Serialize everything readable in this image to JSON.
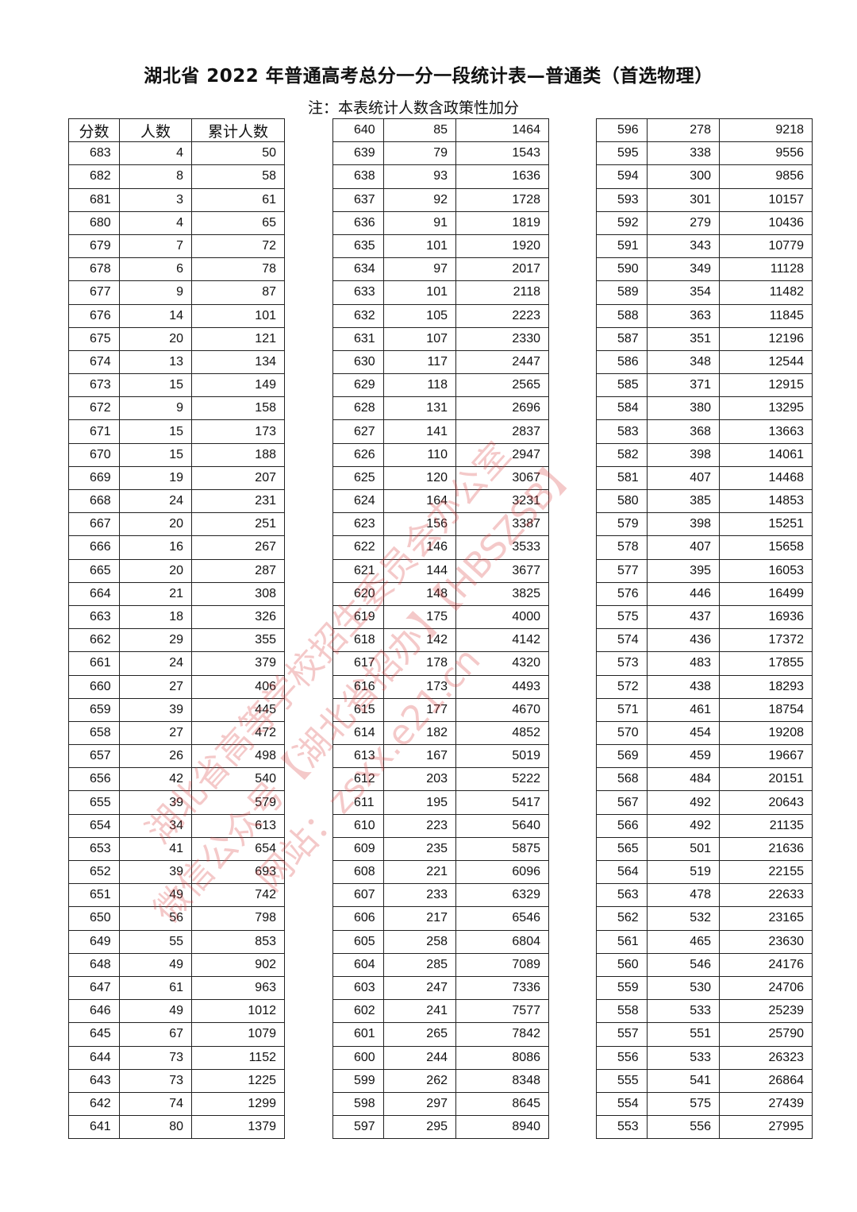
{
  "title": "湖北省 2022 年普通高考总分一分一段统计表—普通类（首选物理）",
  "note": "注：本表统计人数含政策性加分",
  "headers": [
    "分数",
    "人数",
    "累计人数"
  ],
  "watermark": [
    "湖北省高等学校招生委员会办公室",
    "微信公众号【湖北省招办】【HBSZSB】",
    "网站：zsxx.e21.cn"
  ],
  "tables": [
    [
      [
        683,
        4,
        50
      ],
      [
        682,
        8,
        58
      ],
      [
        681,
        3,
        61
      ],
      [
        680,
        4,
        65
      ],
      [
        679,
        7,
        72
      ],
      [
        678,
        6,
        78
      ],
      [
        677,
        9,
        87
      ],
      [
        676,
        14,
        101
      ],
      [
        675,
        20,
        121
      ],
      [
        674,
        13,
        134
      ],
      [
        673,
        15,
        149
      ],
      [
        672,
        9,
        158
      ],
      [
        671,
        15,
        173
      ],
      [
        670,
        15,
        188
      ],
      [
        669,
        19,
        207
      ],
      [
        668,
        24,
        231
      ],
      [
        667,
        20,
        251
      ],
      [
        666,
        16,
        267
      ],
      [
        665,
        20,
        287
      ],
      [
        664,
        21,
        308
      ],
      [
        663,
        18,
        326
      ],
      [
        662,
        29,
        355
      ],
      [
        661,
        24,
        379
      ],
      [
        660,
        27,
        406
      ],
      [
        659,
        39,
        445
      ],
      [
        658,
        27,
        472
      ],
      [
        657,
        26,
        498
      ],
      [
        656,
        42,
        540
      ],
      [
        655,
        39,
        579
      ],
      [
        654,
        34,
        613
      ],
      [
        653,
        41,
        654
      ],
      [
        652,
        39,
        693
      ],
      [
        651,
        49,
        742
      ],
      [
        650,
        56,
        798
      ],
      [
        649,
        55,
        853
      ],
      [
        648,
        49,
        902
      ],
      [
        647,
        61,
        963
      ],
      [
        646,
        49,
        1012
      ],
      [
        645,
        67,
        1079
      ],
      [
        644,
        73,
        1152
      ],
      [
        643,
        73,
        1225
      ],
      [
        642,
        74,
        1299
      ],
      [
        641,
        80,
        1379
      ]
    ],
    [
      [
        640,
        85,
        1464
      ],
      [
        639,
        79,
        1543
      ],
      [
        638,
        93,
        1636
      ],
      [
        637,
        92,
        1728
      ],
      [
        636,
        91,
        1819
      ],
      [
        635,
        101,
        1920
      ],
      [
        634,
        97,
        2017
      ],
      [
        633,
        101,
        2118
      ],
      [
        632,
        105,
        2223
      ],
      [
        631,
        107,
        2330
      ],
      [
        630,
        117,
        2447
      ],
      [
        629,
        118,
        2565
      ],
      [
        628,
        131,
        2696
      ],
      [
        627,
        141,
        2837
      ],
      [
        626,
        110,
        2947
      ],
      [
        625,
        120,
        3067
      ],
      [
        624,
        164,
        3231
      ],
      [
        623,
        156,
        3387
      ],
      [
        622,
        146,
        3533
      ],
      [
        621,
        144,
        3677
      ],
      [
        620,
        148,
        3825
      ],
      [
        619,
        175,
        4000
      ],
      [
        618,
        142,
        4142
      ],
      [
        617,
        178,
        4320
      ],
      [
        616,
        173,
        4493
      ],
      [
        615,
        177,
        4670
      ],
      [
        614,
        182,
        4852
      ],
      [
        613,
        167,
        5019
      ],
      [
        612,
        203,
        5222
      ],
      [
        611,
        195,
        5417
      ],
      [
        610,
        223,
        5640
      ],
      [
        609,
        235,
        5875
      ],
      [
        608,
        221,
        6096
      ],
      [
        607,
        233,
        6329
      ],
      [
        606,
        217,
        6546
      ],
      [
        605,
        258,
        6804
      ],
      [
        604,
        285,
        7089
      ],
      [
        603,
        247,
        7336
      ],
      [
        602,
        241,
        7577
      ],
      [
        601,
        265,
        7842
      ],
      [
        600,
        244,
        8086
      ],
      [
        599,
        262,
        8348
      ],
      [
        598,
        297,
        8645
      ],
      [
        597,
        295,
        8940
      ]
    ],
    [
      [
        596,
        278,
        9218
      ],
      [
        595,
        338,
        9556
      ],
      [
        594,
        300,
        9856
      ],
      [
        593,
        301,
        10157
      ],
      [
        592,
        279,
        10436
      ],
      [
        591,
        343,
        10779
      ],
      [
        590,
        349,
        11128
      ],
      [
        589,
        354,
        11482
      ],
      [
        588,
        363,
        11845
      ],
      [
        587,
        351,
        12196
      ],
      [
        586,
        348,
        12544
      ],
      [
        585,
        371,
        12915
      ],
      [
        584,
        380,
        13295
      ],
      [
        583,
        368,
        13663
      ],
      [
        582,
        398,
        14061
      ],
      [
        581,
        407,
        14468
      ],
      [
        580,
        385,
        14853
      ],
      [
        579,
        398,
        15251
      ],
      [
        578,
        407,
        15658
      ],
      [
        577,
        395,
        16053
      ],
      [
        576,
        446,
        16499
      ],
      [
        575,
        437,
        16936
      ],
      [
        574,
        436,
        17372
      ],
      [
        573,
        483,
        17855
      ],
      [
        572,
        438,
        18293
      ],
      [
        571,
        461,
        18754
      ],
      [
        570,
        454,
        19208
      ],
      [
        569,
        459,
        19667
      ],
      [
        568,
        484,
        20151
      ],
      [
        567,
        492,
        20643
      ],
      [
        566,
        492,
        21135
      ],
      [
        565,
        501,
        21636
      ],
      [
        564,
        519,
        22155
      ],
      [
        563,
        478,
        22633
      ],
      [
        562,
        532,
        23165
      ],
      [
        561,
        465,
        23630
      ],
      [
        560,
        546,
        24176
      ],
      [
        559,
        530,
        24706
      ],
      [
        558,
        533,
        25239
      ],
      [
        557,
        551,
        25790
      ],
      [
        556,
        533,
        26323
      ],
      [
        555,
        541,
        26864
      ],
      [
        554,
        575,
        27439
      ],
      [
        553,
        556,
        27995
      ]
    ]
  ]
}
